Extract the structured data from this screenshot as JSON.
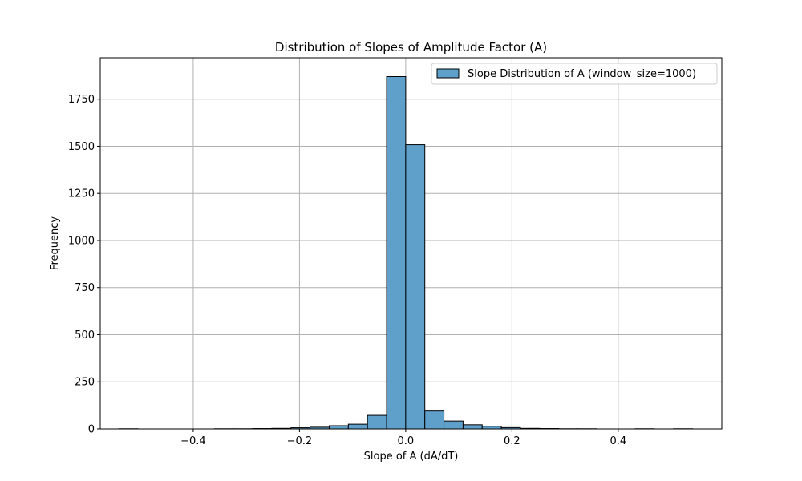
{
  "chart_data": {
    "type": "bar",
    "title": "Distribution of Slopes of Amplitude Factor (A)",
    "xlabel": "Slope of A (dA/dT)",
    "ylabel": "Frequency",
    "xlim": [
      -0.575,
      0.595
    ],
    "ylim": [
      0,
      1970
    ],
    "xticks": [
      -0.4,
      -0.2,
      0.0,
      0.2,
      0.4
    ],
    "xtick_labels": [
      "−0.4",
      "−0.2",
      "0.0",
      "0.2",
      "0.4"
    ],
    "yticks": [
      0,
      250,
      500,
      750,
      1000,
      1250,
      1500,
      1750
    ],
    "ytick_labels": [
      "0",
      "250",
      "500",
      "750",
      "1000",
      "1250",
      "1500",
      "1750"
    ],
    "grid": true,
    "legend_position": "top-right",
    "colors": {
      "bar_fill": "#5fa0cb",
      "bar_edge": "#000000",
      "grid": "#b0b0b0"
    },
    "series": [
      {
        "name": "Slope Distribution of A (window_size=1000)",
        "bin_edges": [
          -0.54,
          -0.504,
          -0.468,
          -0.432,
          -0.396,
          -0.36,
          -0.324,
          -0.288,
          -0.252,
          -0.216,
          -0.18,
          -0.144,
          -0.108,
          -0.072,
          -0.036,
          0.0,
          0.036,
          0.072,
          0.108,
          0.144,
          0.18,
          0.216,
          0.252,
          0.288,
          0.324,
          0.36,
          0.396,
          0.432,
          0.468,
          0.504,
          0.54
        ],
        "values": [
          1,
          0,
          0,
          0,
          0,
          1,
          1,
          2,
          3,
          6,
          9,
          17,
          25,
          72,
          1870,
          1508,
          95,
          42,
          22,
          14,
          7,
          3,
          2,
          1,
          1,
          0,
          0,
          1,
          0,
          1
        ]
      }
    ]
  }
}
